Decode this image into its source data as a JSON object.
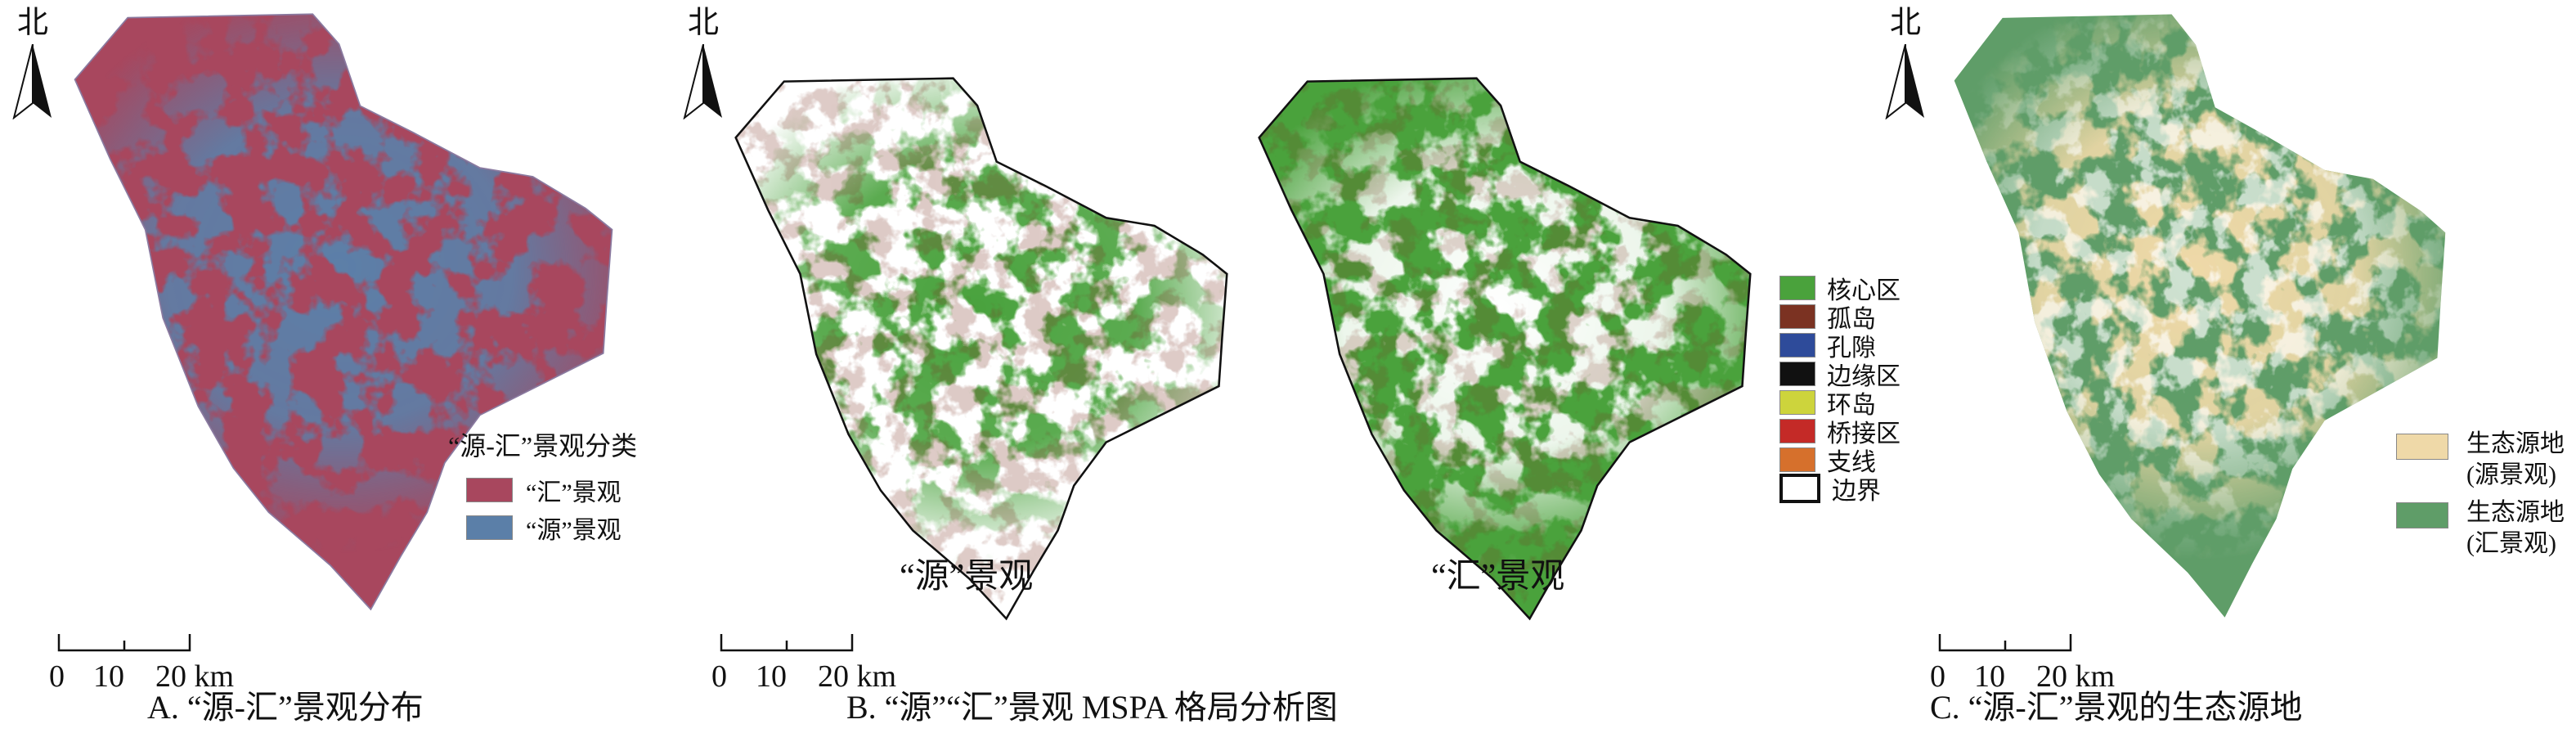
{
  "north_label": "北",
  "scale": {
    "ticks": [
      "0",
      "10",
      "20 km"
    ]
  },
  "panel_a": {
    "caption": "A. “源-汇”景观分布",
    "legend_title": "“源-汇”景观分类",
    "legend": [
      {
        "label": "“汇”景观",
        "color": "#a8475e"
      },
      {
        "label": "“源”景观",
        "color": "#5b7fa8"
      }
    ]
  },
  "panel_b": {
    "caption": "B. “源”“汇”景观 MSPA 格局分析图",
    "map_labels": [
      "“源”景观",
      "“汇”景观"
    ],
    "legend": [
      {
        "label": "核心区",
        "color": "#4aa23c"
      },
      {
        "label": "孤岛",
        "color": "#7b3222"
      },
      {
        "label": "孔隙",
        "color": "#2e4b9a"
      },
      {
        "label": "边缘区",
        "color": "#111111"
      },
      {
        "label": "环岛",
        "color": "#cdd43c"
      },
      {
        "label": "桥接区",
        "color": "#c42a27"
      },
      {
        "label": "支线",
        "color": "#d6702c"
      },
      {
        "label": "边界",
        "color": "#ffffff"
      }
    ]
  },
  "panel_c": {
    "caption": "C. “源-汇”景观的生态源地",
    "legend": [
      {
        "label": "生态源地",
        "sub": "(源景观)",
        "color": "#efd9a8"
      },
      {
        "label": "生态源地",
        "sub": "(汇景观)",
        "color": "#5f9d68"
      }
    ]
  }
}
